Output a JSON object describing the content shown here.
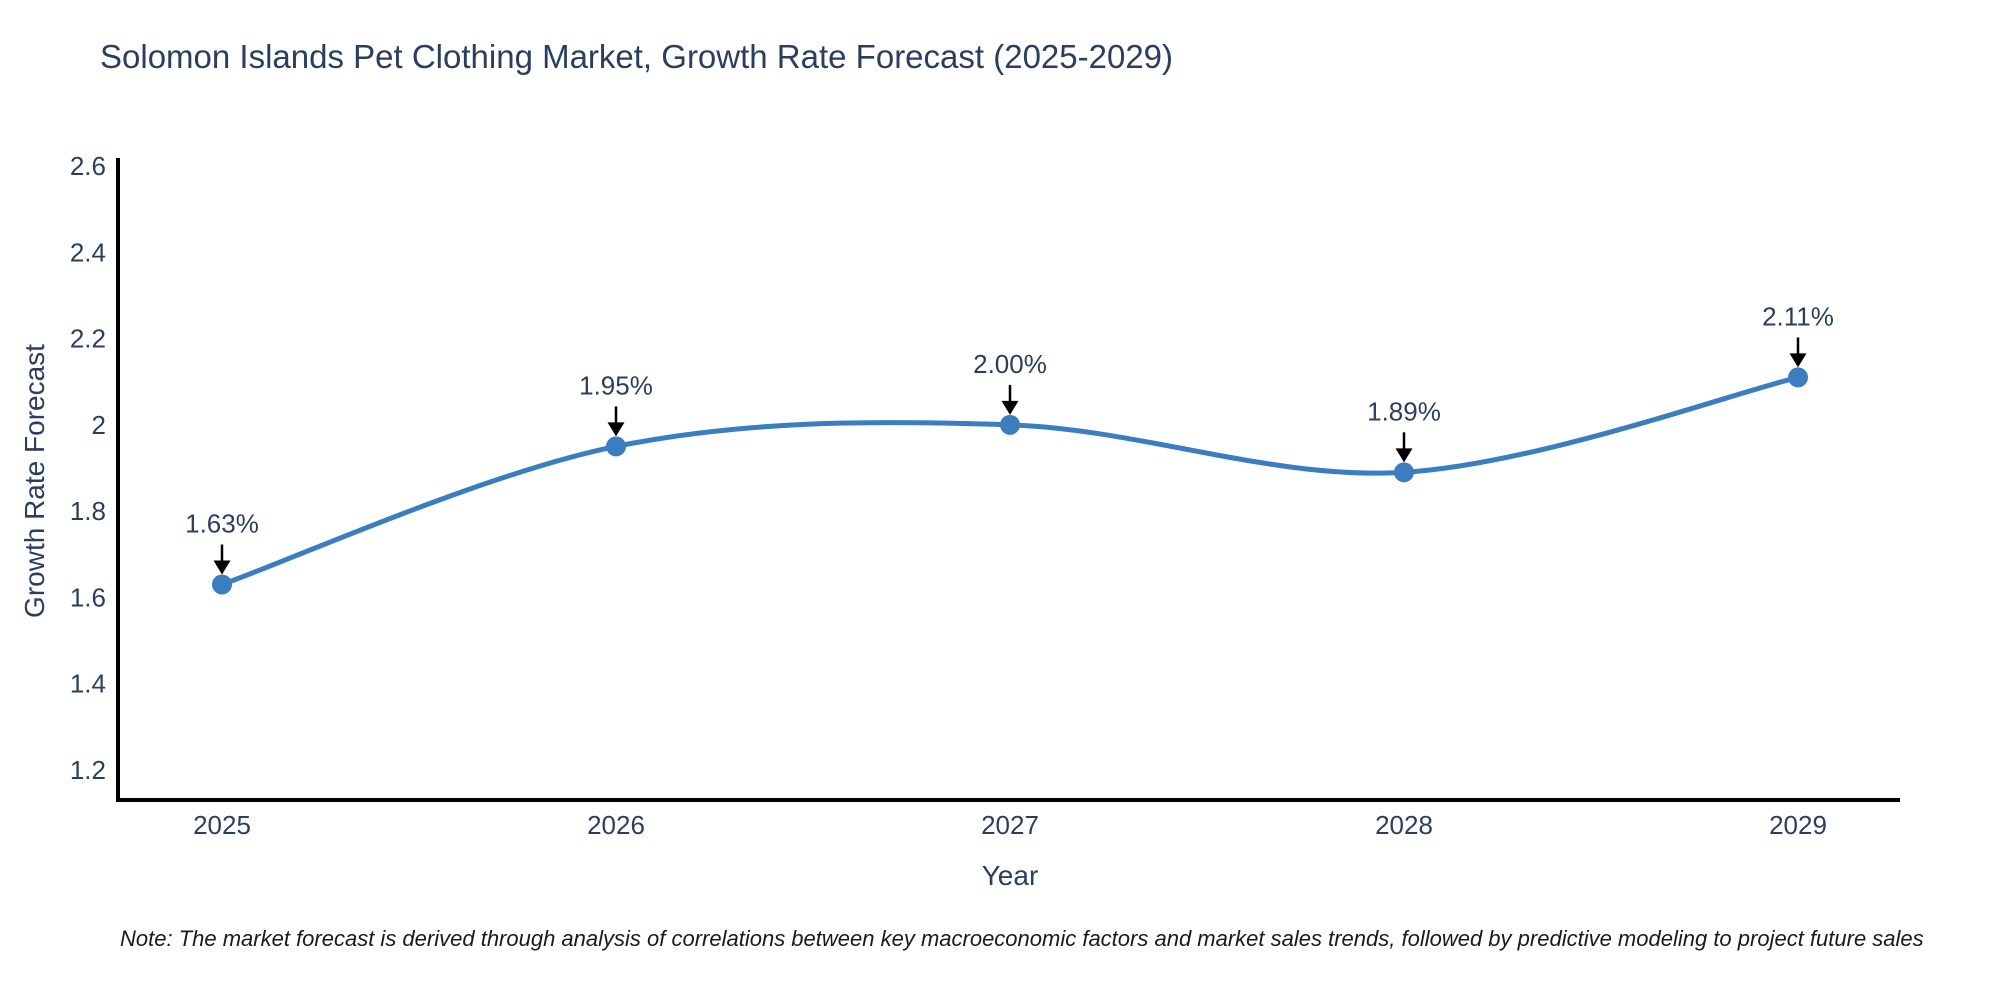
{
  "title": "Solomon Islands Pet Clothing Market, Growth Rate Forecast (2025-2029)",
  "note": {
    "text": "Note: The market forecast is derived through analysis of correlations between key macroeconomic factors and market sales trends, followed by predictive modeling to project future sales"
  },
  "chart_data": {
    "type": "line",
    "line_shape": "spline",
    "title": "Solomon Islands Pet Clothing Market, Growth Rate Forecast (2025-2029)",
    "xlabel": "Year",
    "ylabel": "Growth Rate Forecast",
    "x": [
      "2025",
      "2026",
      "2027",
      "2028",
      "2029"
    ],
    "series": [
      {
        "name": "Growth Rate Forecast",
        "values": [
          1.63,
          1.95,
          2.0,
          1.89,
          2.11
        ]
      }
    ],
    "point_labels": [
      "1.63%",
      "1.95%",
      "2.00%",
      "1.89%",
      "2.11%"
    ],
    "yticks": [
      "2.6",
      "2.4",
      "2.2",
      "2",
      "1.8",
      "1.6",
      "1.4",
      "1.2"
    ],
    "ylim": [
      1.13,
      2.62
    ],
    "grid": false,
    "legend": false,
    "annotations_style": "black-down-arrows",
    "colors": {
      "line": "#3a7ebf",
      "marker": "#3a7ebf",
      "arrow": "#000000",
      "axis": "#000000",
      "text": "#2a3f5f",
      "background": "#ffffff"
    }
  }
}
